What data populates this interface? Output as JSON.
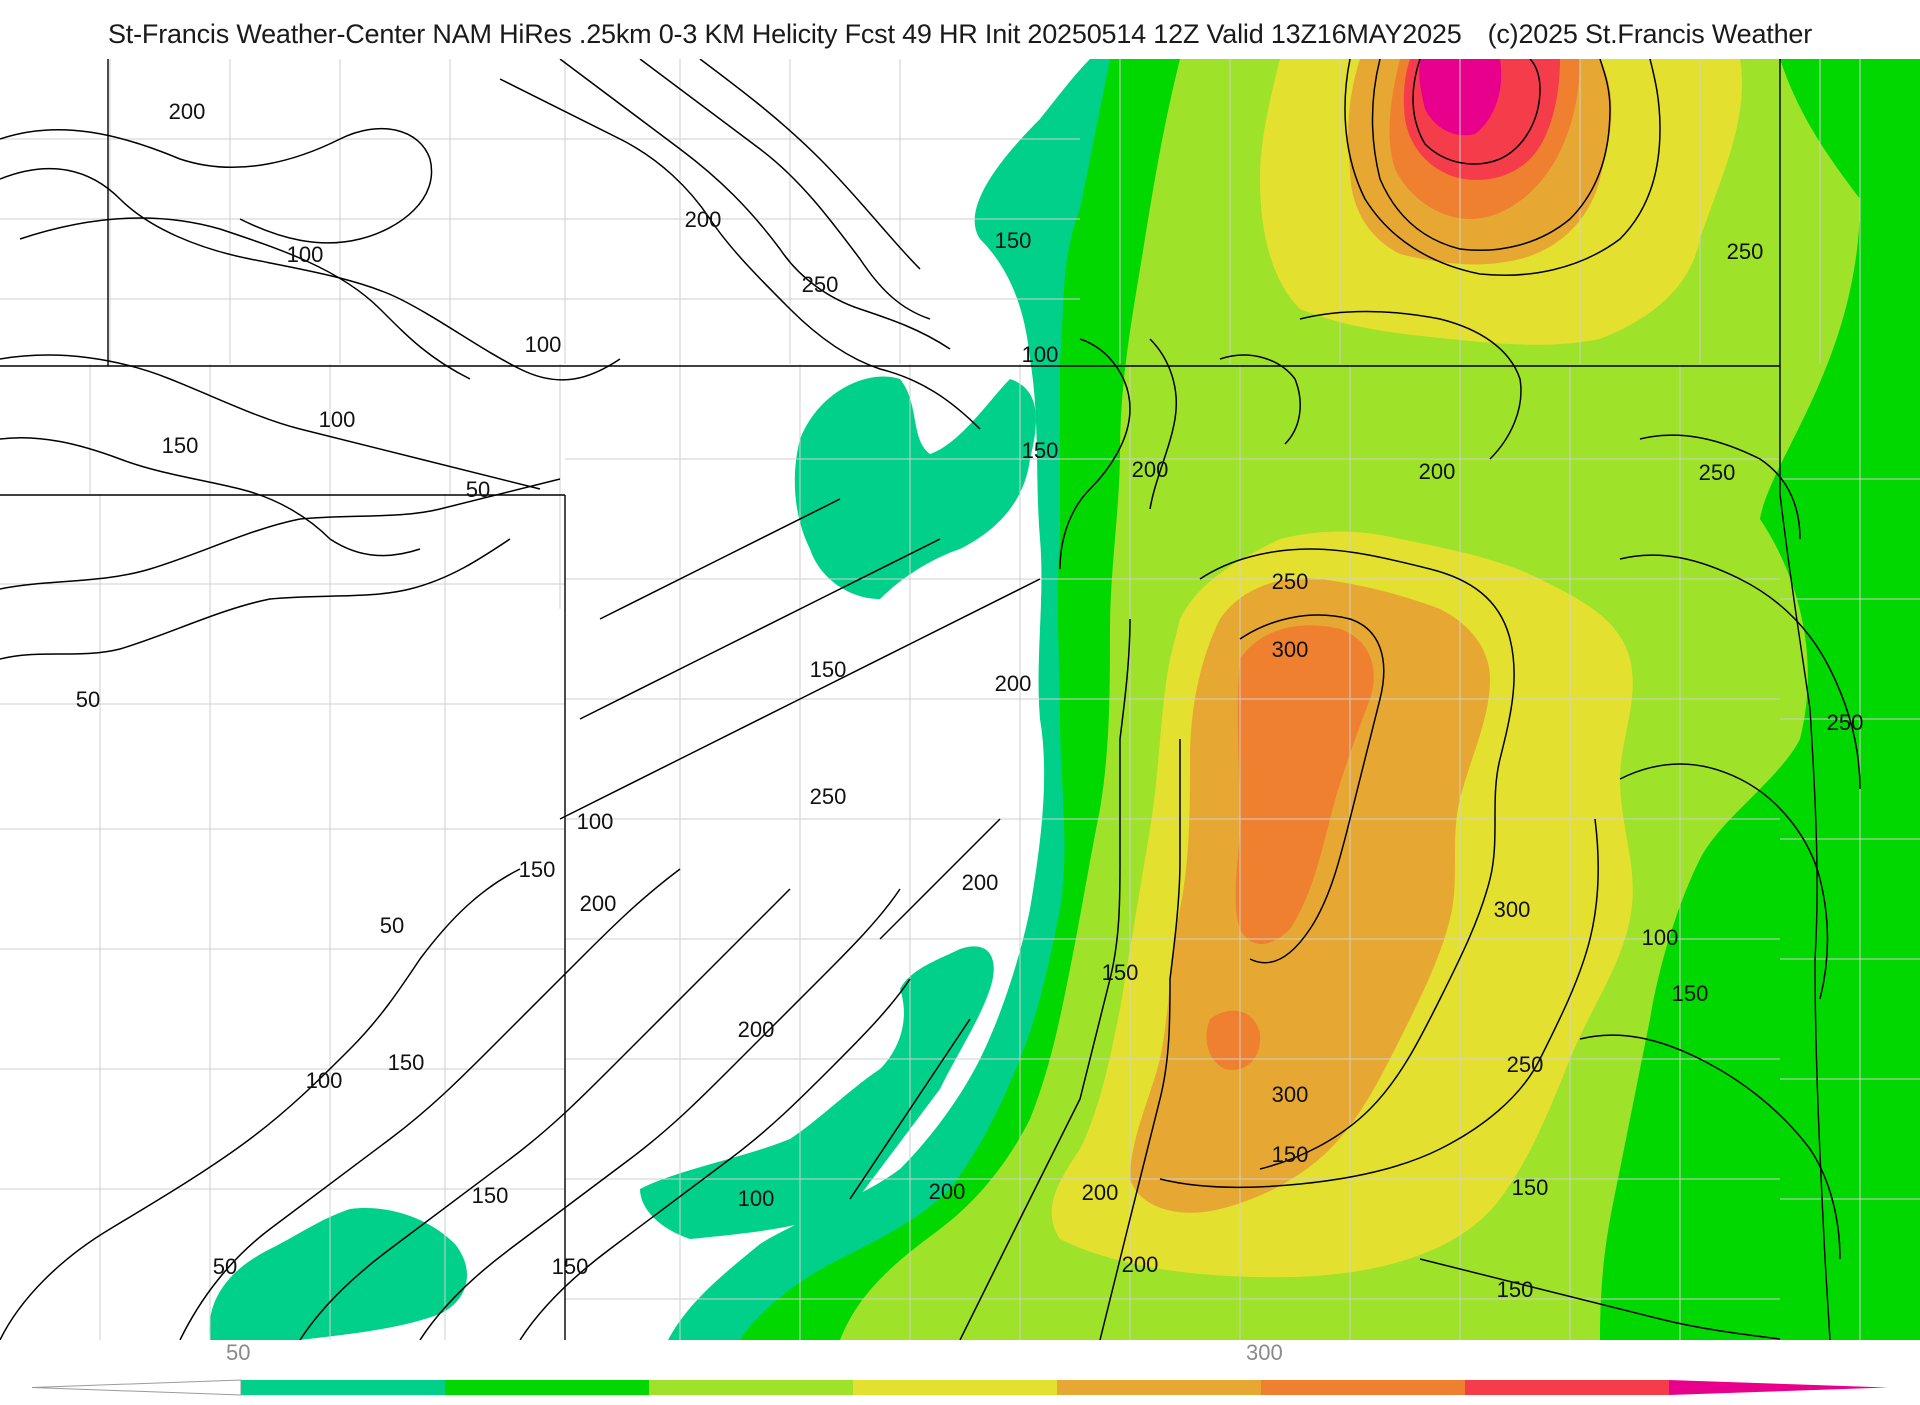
{
  "header": {
    "title": "St-Francis Weather-Center NAM HiRes .25km 0-3 KM Helicity Fcst 49 HR Init 20250514 12Z  Valid 13Z16MAY2025",
    "copyright": "(c)2025 St.Francis Weather"
  },
  "colors": {
    "bin_50_100": "#00d08a",
    "bin_100_150": "#00d800",
    "bin_150_200": "#9ee22a",
    "bin_200_250": "#e4e030",
    "bin_250_300": "#e6a832",
    "bin_300_350": "#ee8030",
    "bin_350_400": "#f43c4a",
    "bin_400_plus": "#e8008c",
    "contour": "#000000",
    "county_lines": "#cfcfcf",
    "state_lines": "#000000"
  },
  "colorbar": {
    "tick_labels": [
      "50",
      "300"
    ],
    "tick_values": [
      50,
      300
    ],
    "min": 50,
    "max": 400,
    "interval": 50
  },
  "contour_labels": [
    {
      "text": "200",
      "value": 200
    },
    {
      "text": "150",
      "value": 150
    },
    {
      "text": "100",
      "value": 100
    },
    {
      "text": "200",
      "value": 200
    },
    {
      "text": "250",
      "value": 250
    },
    {
      "text": "100",
      "value": 100
    },
    {
      "text": "100",
      "value": 100
    },
    {
      "text": "150",
      "value": 150
    },
    {
      "text": "100",
      "value": 100
    },
    {
      "text": "50",
      "value": 50
    },
    {
      "text": "50",
      "value": 50
    },
    {
      "text": "250",
      "value": 250
    },
    {
      "text": "150",
      "value": 150
    },
    {
      "text": "200",
      "value": 200
    },
    {
      "text": "200",
      "value": 200
    },
    {
      "text": "250",
      "value": 250
    },
    {
      "text": "250",
      "value": 250
    },
    {
      "text": "300",
      "value": 300
    },
    {
      "text": "150",
      "value": 150
    },
    {
      "text": "200",
      "value": 200
    },
    {
      "text": "250",
      "value": 250
    },
    {
      "text": "100",
      "value": 100
    },
    {
      "text": "150",
      "value": 150
    },
    {
      "text": "200",
      "value": 200
    },
    {
      "text": "250",
      "value": 250
    },
    {
      "text": "200",
      "value": 200
    },
    {
      "text": "50",
      "value": 50
    },
    {
      "text": "300",
      "value": 300
    },
    {
      "text": "150",
      "value": 150
    },
    {
      "text": "200",
      "value": 200
    },
    {
      "text": "150",
      "value": 150
    },
    {
      "text": "100",
      "value": 100
    },
    {
      "text": "150",
      "value": 150
    },
    {
      "text": "250",
      "value": 250
    },
    {
      "text": "300",
      "value": 300
    },
    {
      "text": "150",
      "value": 150
    },
    {
      "text": "100",
      "value": 100
    },
    {
      "text": "150",
      "value": 150
    },
    {
      "text": "100",
      "value": 100
    },
    {
      "text": "200",
      "value": 200
    },
    {
      "text": "200",
      "value": 200
    },
    {
      "text": "150",
      "value": 150
    },
    {
      "text": "50",
      "value": 50
    },
    {
      "text": "150",
      "value": 150
    },
    {
      "text": "200",
      "value": 200
    },
    {
      "text": "150",
      "value": 150
    }
  ]
}
